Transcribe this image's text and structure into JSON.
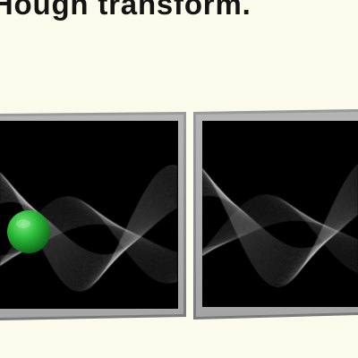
{
  "heading": {
    "text": "g Hough transform."
  },
  "panels": [
    {
      "id": "left",
      "has_marker": true
    },
    {
      "id": "right",
      "has_marker": false
    }
  ],
  "colors": {
    "page_background": "#fbfbeb",
    "frame": "#8a8a8a",
    "panel_background": "#000000",
    "curves": "#ffffff",
    "marker": "#2ec43e"
  }
}
